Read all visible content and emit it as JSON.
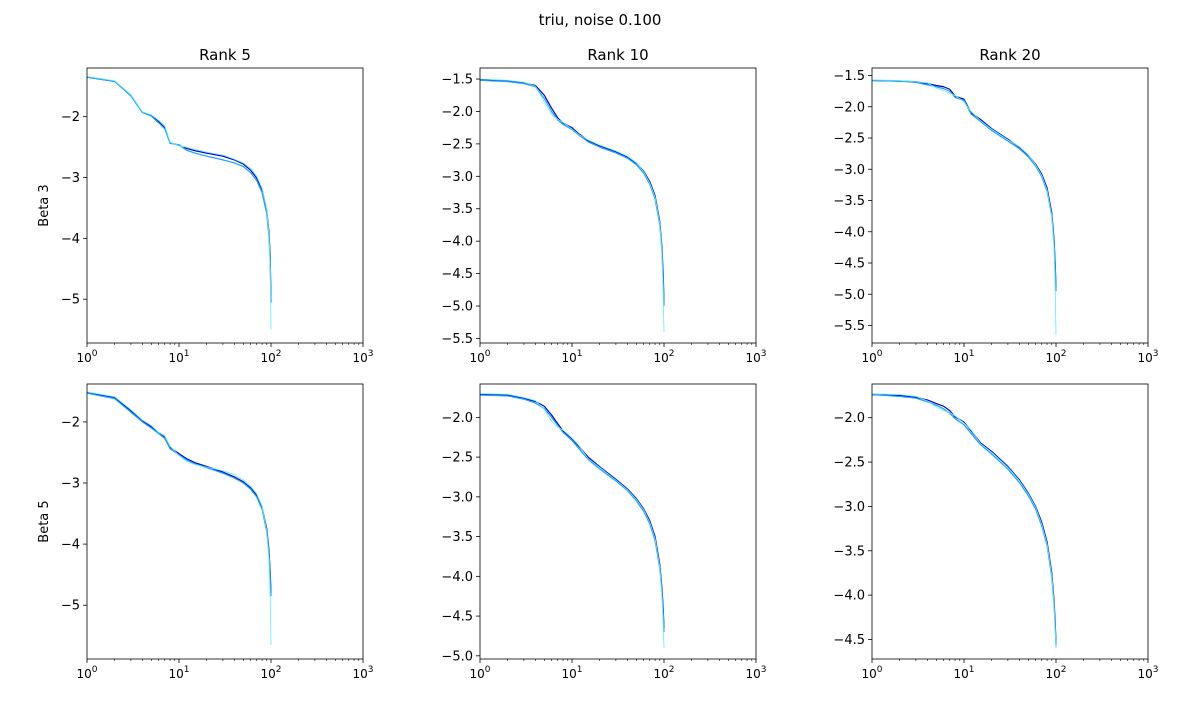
{
  "figure": {
    "suptitle": "triu, noise 0.100"
  },
  "colors": {
    "dark_line": "#0000cc",
    "mid_line": "#1f9fff",
    "light_line": "#5fefef"
  },
  "chart_data": [
    {
      "type": "line",
      "title": "Rank 5",
      "ylabel": "Beta 3",
      "xscale": "log",
      "xlim": [
        1,
        1000
      ],
      "ylim": [
        -5.72,
        -1.2
      ],
      "xticks": [
        1,
        10,
        100,
        1000
      ],
      "xtick_labels": [
        "10^0",
        "10^1",
        "10^2",
        "10^3"
      ],
      "yticks": [
        -2,
        -3,
        -4,
        -5
      ],
      "ytick_labels": [
        "−2",
        "−3",
        "−4",
        "−5"
      ],
      "series": [
        {
          "x": [
            1,
            2,
            3,
            4,
            5,
            6,
            7,
            8,
            10,
            12,
            15,
            20,
            30,
            40,
            50,
            60,
            70,
            80,
            90,
            95,
            98,
            100
          ],
          "y": [
            -1.35,
            -1.42,
            -1.65,
            -1.93,
            -1.98,
            -2.08,
            -2.18,
            -2.43,
            -2.47,
            -2.52,
            -2.56,
            -2.6,
            -2.65,
            -2.71,
            -2.78,
            -2.88,
            -3.01,
            -3.2,
            -3.55,
            -3.9,
            -4.3,
            -5.05
          ]
        },
        {
          "x": [
            1,
            2,
            3,
            4,
            5,
            6,
            7,
            8,
            10,
            12,
            15,
            20,
            30,
            40,
            50,
            60,
            70,
            80,
            90,
            95,
            98,
            100
          ],
          "y": [
            -1.35,
            -1.42,
            -1.66,
            -1.93,
            -1.99,
            -2.1,
            -2.2,
            -2.44,
            -2.46,
            -2.55,
            -2.6,
            -2.65,
            -2.71,
            -2.76,
            -2.82,
            -2.92,
            -3.05,
            -3.25,
            -3.6,
            -3.97,
            -4.4,
            -5.05
          ]
        },
        {
          "x": [
            1,
            2,
            3,
            4,
            5,
            6,
            7,
            8,
            10,
            12,
            15,
            20,
            30,
            40,
            50,
            60,
            70,
            80,
            90,
            95,
            98,
            100
          ],
          "y": [
            -1.34,
            -1.41,
            -1.64,
            -1.92,
            -1.97,
            -2.06,
            -2.15,
            -2.42,
            -2.48,
            -2.5,
            -2.54,
            -2.58,
            -2.63,
            -2.7,
            -2.76,
            -2.85,
            -2.98,
            -3.18,
            -3.52,
            -3.95,
            -4.5,
            -5.5
          ]
        }
      ]
    },
    {
      "type": "line",
      "title": "Rank 10",
      "ylabel": "",
      "xscale": "log",
      "xlim": [
        1,
        1000
      ],
      "ylim": [
        -5.57,
        -1.33
      ],
      "xticks": [
        1,
        10,
        100,
        1000
      ],
      "xtick_labels": [
        "10^0",
        "10^1",
        "10^2",
        "10^3"
      ],
      "yticks": [
        -1.5,
        -2.0,
        -2.5,
        -3.0,
        -3.5,
        -4.0,
        -4.5,
        -5.0,
        -5.5
      ],
      "ytick_labels": [
        "−1.5",
        "−2.0",
        "−2.5",
        "−3.0",
        "−3.5",
        "−4.0",
        "−4.5",
        "−5.0",
        "−5.5"
      ],
      "series": [
        {
          "x": [
            1,
            2,
            3,
            4,
            5,
            6,
            7,
            8,
            10,
            12,
            15,
            20,
            30,
            40,
            50,
            60,
            70,
            80,
            90,
            95,
            98,
            100
          ],
          "y": [
            -1.51,
            -1.53,
            -1.56,
            -1.6,
            -1.75,
            -1.95,
            -2.1,
            -2.18,
            -2.25,
            -2.35,
            -2.45,
            -2.53,
            -2.62,
            -2.7,
            -2.8,
            -2.92,
            -3.08,
            -3.3,
            -3.7,
            -4.1,
            -4.5,
            -4.95
          ]
        },
        {
          "x": [
            1,
            2,
            3,
            4,
            5,
            6,
            7,
            8,
            10,
            12,
            15,
            20,
            30,
            40,
            50,
            60,
            70,
            80,
            90,
            95,
            98,
            100
          ],
          "y": [
            -1.52,
            -1.54,
            -1.57,
            -1.62,
            -1.8,
            -2.0,
            -2.13,
            -2.2,
            -2.28,
            -2.37,
            -2.47,
            -2.55,
            -2.64,
            -2.72,
            -2.82,
            -2.95,
            -3.12,
            -3.35,
            -3.75,
            -4.15,
            -4.6,
            -5.0
          ]
        },
        {
          "x": [
            1,
            2,
            3,
            4,
            5,
            6,
            7,
            8,
            10,
            12,
            15,
            20,
            30,
            40,
            50,
            60,
            70,
            80,
            90,
            95,
            98,
            100
          ],
          "y": [
            -1.5,
            -1.52,
            -1.55,
            -1.61,
            -1.85,
            -2.05,
            -2.12,
            -2.17,
            -2.27,
            -2.36,
            -2.44,
            -2.52,
            -2.61,
            -2.69,
            -2.79,
            -2.93,
            -3.1,
            -3.32,
            -3.72,
            -4.2,
            -4.8,
            -5.4
          ]
        }
      ]
    },
    {
      "type": "line",
      "title": "Rank 20",
      "ylabel": "",
      "xscale": "log",
      "xlim": [
        1,
        1000
      ],
      "ylim": [
        -5.78,
        -1.38
      ],
      "xticks": [
        1,
        10,
        100,
        1000
      ],
      "xtick_labels": [
        "10^0",
        "10^1",
        "10^2",
        "10^3"
      ],
      "yticks": [
        -1.5,
        -2.0,
        -2.5,
        -3.0,
        -3.5,
        -4.0,
        -4.5,
        -5.0,
        -5.5
      ],
      "ytick_labels": [
        "−1.5",
        "−2.0",
        "−2.5",
        "−3.0",
        "−3.5",
        "−4.0",
        "−4.5",
        "−5.0",
        "−5.5"
      ],
      "series": [
        {
          "x": [
            1,
            2,
            3,
            4,
            5,
            6,
            7,
            8,
            10,
            12,
            15,
            20,
            30,
            40,
            50,
            60,
            70,
            80,
            90,
            95,
            98,
            100
          ],
          "y": [
            -1.58,
            -1.59,
            -1.6,
            -1.63,
            -1.66,
            -1.68,
            -1.72,
            -1.83,
            -1.88,
            -2.1,
            -2.2,
            -2.35,
            -2.52,
            -2.65,
            -2.78,
            -2.92,
            -3.08,
            -3.3,
            -3.7,
            -4.1,
            -4.5,
            -4.9
          ]
        },
        {
          "x": [
            1,
            2,
            3,
            4,
            5,
            6,
            7,
            8,
            10,
            12,
            15,
            20,
            30,
            40,
            50,
            60,
            70,
            80,
            90,
            95,
            98,
            100
          ],
          "y": [
            -1.58,
            -1.59,
            -1.61,
            -1.65,
            -1.68,
            -1.71,
            -1.75,
            -1.85,
            -1.9,
            -2.12,
            -2.23,
            -2.38,
            -2.55,
            -2.67,
            -2.8,
            -2.95,
            -3.12,
            -3.35,
            -3.75,
            -4.15,
            -4.55,
            -4.95
          ]
        },
        {
          "x": [
            1,
            2,
            3,
            4,
            5,
            6,
            7,
            8,
            10,
            12,
            15,
            20,
            30,
            40,
            50,
            60,
            70,
            80,
            90,
            95,
            98,
            100
          ],
          "y": [
            -1.57,
            -1.58,
            -1.6,
            -1.62,
            -1.7,
            -1.74,
            -1.78,
            -1.82,
            -1.92,
            -2.08,
            -2.22,
            -2.36,
            -2.53,
            -2.64,
            -2.77,
            -2.93,
            -3.1,
            -3.33,
            -3.75,
            -4.25,
            -4.9,
            -5.65
          ]
        }
      ]
    },
    {
      "type": "line",
      "title": "",
      "ylabel": "Beta 5",
      "xscale": "log",
      "xlim": [
        1,
        1000
      ],
      "ylim": [
        -5.88,
        -1.38
      ],
      "xticks": [
        1,
        10,
        100,
        1000
      ],
      "xtick_labels": [
        "10^0",
        "10^1",
        "10^2",
        "10^3"
      ],
      "yticks": [
        -2,
        -3,
        -4,
        -5
      ],
      "ytick_labels": [
        "−2",
        "−3",
        "−4",
        "−5"
      ],
      "series": [
        {
          "x": [
            1,
            2,
            3,
            4,
            5,
            6,
            7,
            8,
            10,
            12,
            15,
            20,
            30,
            40,
            50,
            60,
            70,
            80,
            90,
            95,
            98,
            100
          ],
          "y": [
            -1.52,
            -1.6,
            -1.82,
            -1.98,
            -2.08,
            -2.18,
            -2.25,
            -2.42,
            -2.52,
            -2.6,
            -2.67,
            -2.73,
            -2.82,
            -2.9,
            -2.98,
            -3.08,
            -3.2,
            -3.4,
            -3.75,
            -4.1,
            -4.45,
            -4.8
          ]
        },
        {
          "x": [
            1,
            2,
            3,
            4,
            5,
            6,
            7,
            8,
            10,
            12,
            15,
            20,
            30,
            40,
            50,
            60,
            70,
            80,
            90,
            95,
            98,
            100
          ],
          "y": [
            -1.53,
            -1.62,
            -1.84,
            -2.0,
            -2.1,
            -2.19,
            -2.27,
            -2.44,
            -2.54,
            -2.62,
            -2.69,
            -2.75,
            -2.84,
            -2.92,
            -3.0,
            -3.1,
            -3.23,
            -3.43,
            -3.8,
            -4.15,
            -4.5,
            -4.85
          ]
        },
        {
          "x": [
            1,
            2,
            3,
            4,
            5,
            6,
            7,
            8,
            10,
            12,
            15,
            20,
            30,
            40,
            50,
            60,
            70,
            80,
            90,
            95,
            98,
            100
          ],
          "y": [
            -1.51,
            -1.59,
            -1.8,
            -1.97,
            -2.06,
            -2.17,
            -2.23,
            -2.4,
            -2.55,
            -2.64,
            -2.7,
            -2.74,
            -2.8,
            -2.86,
            -2.95,
            -3.05,
            -3.18,
            -3.38,
            -3.78,
            -4.25,
            -4.9,
            -5.65
          ]
        }
      ]
    },
    {
      "type": "line",
      "title": "",
      "ylabel": "",
      "xscale": "log",
      "xlim": [
        1,
        1000
      ],
      "ylim": [
        -5.04,
        -1.58
      ],
      "xticks": [
        1,
        10,
        100,
        1000
      ],
      "xtick_labels": [
        "10^0",
        "10^1",
        "10^2",
        "10^3"
      ],
      "yticks": [
        -2.0,
        -2.5,
        -3.0,
        -3.5,
        -4.0,
        -4.5,
        -5.0
      ],
      "ytick_labels": [
        "−2.0",
        "−2.5",
        "−3.0",
        "−3.5",
        "−4.0",
        "−4.5",
        "−5.0"
      ],
      "series": [
        {
          "x": [
            1,
            2,
            3,
            4,
            5,
            6,
            7,
            8,
            10,
            12,
            15,
            20,
            30,
            40,
            50,
            60,
            70,
            80,
            90,
            95,
            98,
            100
          ],
          "y": [
            -1.71,
            -1.72,
            -1.76,
            -1.8,
            -1.86,
            -1.97,
            -2.08,
            -2.17,
            -2.27,
            -2.37,
            -2.5,
            -2.62,
            -2.78,
            -2.9,
            -3.02,
            -3.15,
            -3.3,
            -3.5,
            -3.85,
            -4.15,
            -4.4,
            -4.65
          ]
        },
        {
          "x": [
            1,
            2,
            3,
            4,
            5,
            6,
            7,
            8,
            10,
            12,
            15,
            20,
            30,
            40,
            50,
            60,
            70,
            80,
            90,
            95,
            98,
            100
          ],
          "y": [
            -1.72,
            -1.73,
            -1.77,
            -1.82,
            -1.89,
            -2.0,
            -2.1,
            -2.19,
            -2.29,
            -2.4,
            -2.53,
            -2.65,
            -2.8,
            -2.92,
            -3.05,
            -3.18,
            -3.34,
            -3.55,
            -3.9,
            -4.2,
            -4.45,
            -4.7
          ]
        },
        {
          "x": [
            1,
            2,
            3,
            4,
            5,
            6,
            7,
            8,
            10,
            12,
            15,
            20,
            30,
            40,
            50,
            60,
            70,
            80,
            90,
            95,
            98,
            100
          ],
          "y": [
            -1.7,
            -1.71,
            -1.75,
            -1.79,
            -1.9,
            -2.05,
            -2.12,
            -2.16,
            -2.26,
            -2.36,
            -2.52,
            -2.63,
            -2.79,
            -2.91,
            -3.03,
            -3.16,
            -3.32,
            -3.52,
            -3.88,
            -4.25,
            -4.6,
            -4.9
          ]
        }
      ]
    },
    {
      "type": "line",
      "title": "",
      "ylabel": "",
      "xscale": "log",
      "xlim": [
        1,
        1000
      ],
      "ylim": [
        -4.72,
        -1.62
      ],
      "xticks": [
        1,
        10,
        100,
        1000
      ],
      "xtick_labels": [
        "10^0",
        "10^1",
        "10^2",
        "10^3"
      ],
      "yticks": [
        -2.0,
        -2.5,
        -3.0,
        -3.5,
        -4.0,
        -4.5
      ],
      "ytick_labels": [
        "−2.0",
        "−2.5",
        "−3.0",
        "−3.5",
        "−4.0",
        "−4.5"
      ],
      "series": [
        {
          "x": [
            1,
            2,
            3,
            4,
            5,
            6,
            7,
            8,
            10,
            12,
            15,
            20,
            30,
            40,
            50,
            60,
            70,
            80,
            90,
            95,
            98,
            100
          ],
          "y": [
            -1.74,
            -1.75,
            -1.77,
            -1.8,
            -1.84,
            -1.87,
            -1.92,
            -1.99,
            -2.05,
            -2.15,
            -2.28,
            -2.38,
            -2.55,
            -2.7,
            -2.85,
            -3.0,
            -3.18,
            -3.4,
            -3.75,
            -4.05,
            -4.3,
            -4.55
          ]
        },
        {
          "x": [
            1,
            2,
            3,
            4,
            5,
            6,
            7,
            8,
            10,
            12,
            15,
            20,
            30,
            40,
            50,
            60,
            70,
            80,
            90,
            95,
            98,
            100
          ],
          "y": [
            -1.74,
            -1.76,
            -1.78,
            -1.82,
            -1.86,
            -1.9,
            -1.95,
            -2.01,
            -2.08,
            -2.18,
            -2.3,
            -2.41,
            -2.58,
            -2.73,
            -2.88,
            -3.03,
            -3.22,
            -3.44,
            -3.8,
            -4.1,
            -4.35,
            -4.58
          ]
        },
        {
          "x": [
            1,
            2,
            3,
            4,
            5,
            6,
            7,
            8,
            10,
            12,
            15,
            20,
            30,
            40,
            50,
            60,
            70,
            80,
            90,
            95,
            98,
            100
          ],
          "y": [
            -1.73,
            -1.74,
            -1.76,
            -1.81,
            -1.88,
            -1.92,
            -1.94,
            -1.98,
            -2.06,
            -2.14,
            -2.29,
            -2.39,
            -2.56,
            -2.71,
            -2.86,
            -3.01,
            -3.2,
            -3.42,
            -3.78,
            -4.1,
            -4.4,
            -4.6
          ]
        }
      ]
    }
  ]
}
